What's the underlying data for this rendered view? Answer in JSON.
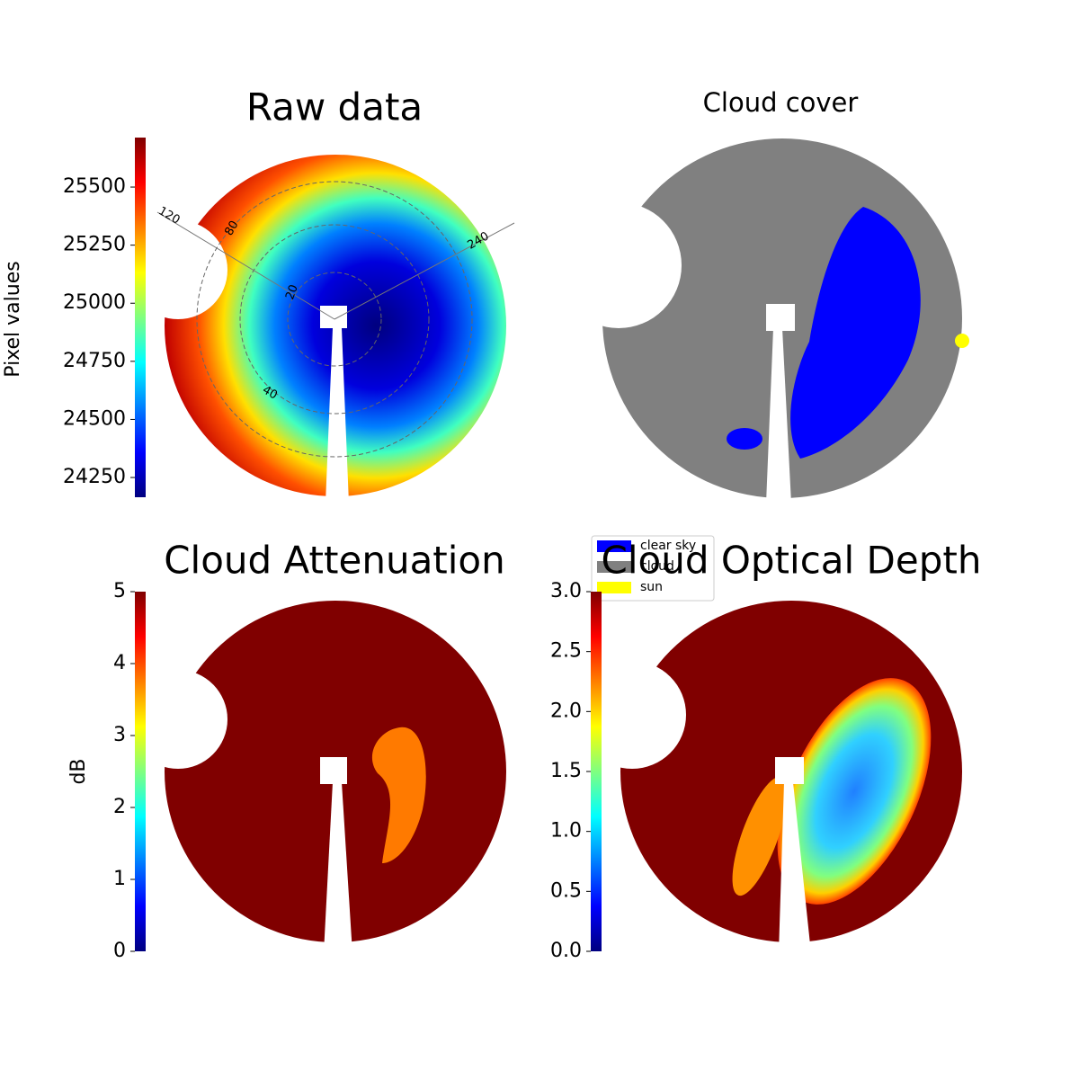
{
  "chart_data": [
    {
      "type": "image",
      "title": "Raw data",
      "colormap": "jet",
      "colorbar": {
        "label": "Pixel values",
        "lim": [
          24165,
          25713
        ],
        "ticks": [
          24250,
          24500,
          24750,
          25000,
          25250,
          25500
        ]
      },
      "annotations": [
        "120",
        "240",
        "80",
        "20",
        "40"
      ]
    },
    {
      "type": "image",
      "title": "Cloud cover",
      "legend": [
        {
          "name": "clear sky",
          "color": "#0000ff"
        },
        {
          "name": "cloud",
          "color": "#808080"
        },
        {
          "name": "sun",
          "color": "#ffff00"
        }
      ]
    },
    {
      "type": "image",
      "title": "Cloud Attenuation",
      "colormap": "jet",
      "colorbar": {
        "label": "dB",
        "lim": [
          0,
          5
        ],
        "ticks": [
          0,
          1,
          2,
          3,
          4,
          5
        ]
      }
    },
    {
      "type": "image",
      "title": "Cloud Optical Depth",
      "colormap": "jet",
      "colorbar": {
        "lim": [
          0,
          3
        ],
        "ticks": [
          {
            "value": 0,
            "label": "0.0"
          },
          {
            "value": 0.5,
            "label": "0.5"
          },
          {
            "value": 1,
            "label": "1.0"
          },
          {
            "value": 1.5,
            "label": "1.5"
          },
          {
            "value": 2,
            "label": "2.0"
          },
          {
            "value": 2.5,
            "label": "2.5"
          },
          {
            "value": 3,
            "label": "3.0"
          }
        ]
      }
    }
  ]
}
